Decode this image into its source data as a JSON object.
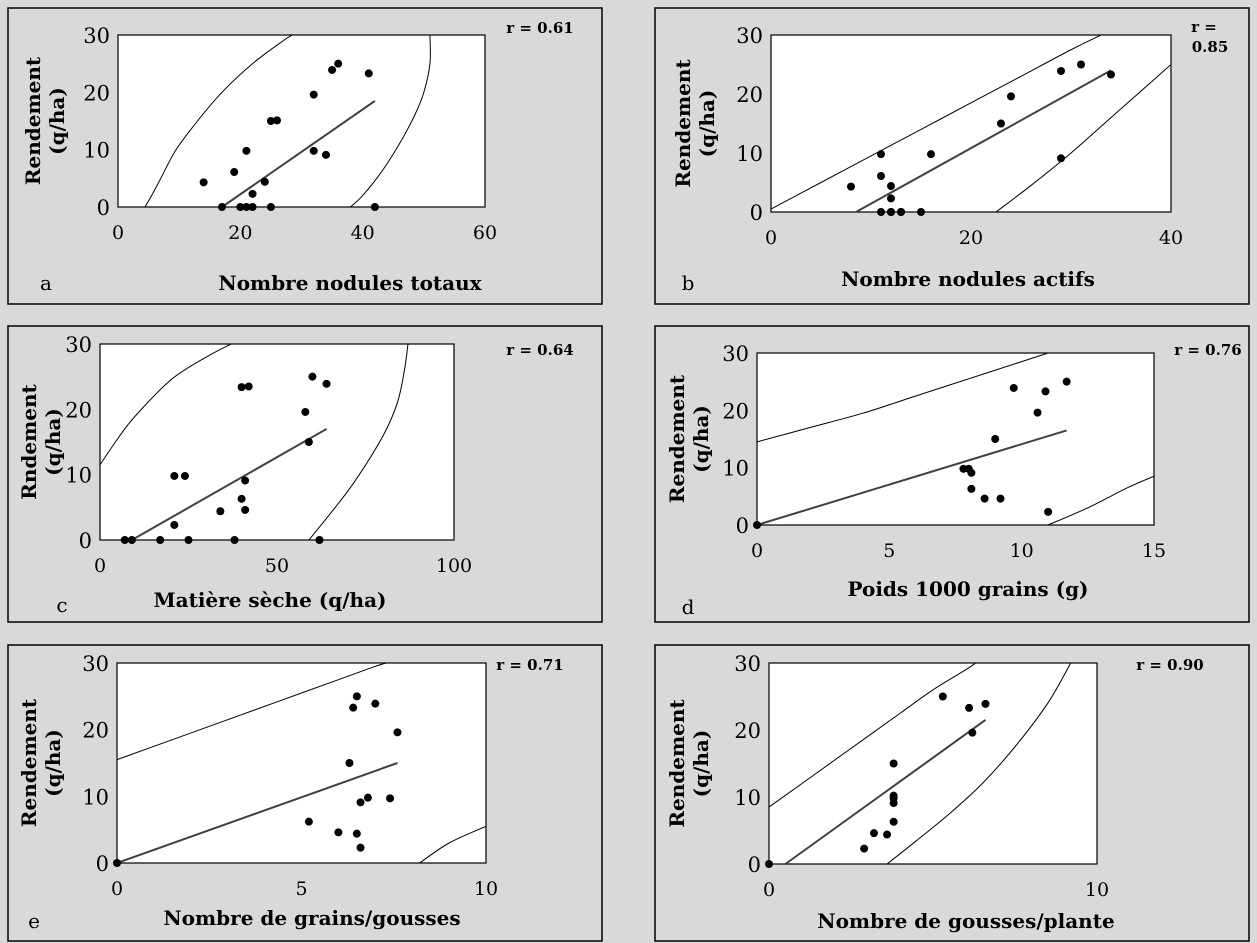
{
  "chart_data": [
    {
      "type": "scatter",
      "panel_label": "a",
      "r_label": "r = 0.61",
      "xlabel": "Nombre nodules totaux",
      "ylabel_line1": "Rendement",
      "ylabel_line2": "(q/ha)",
      "xlim": [
        0,
        60
      ],
      "ylim": [
        0,
        30
      ],
      "xticks": [
        0,
        20,
        40,
        60
      ],
      "yticks": [
        0,
        10,
        20,
        30
      ],
      "x": [
        14,
        17,
        19,
        20,
        21,
        21,
        22,
        22,
        24,
        25,
        25,
        26,
        32,
        32,
        34,
        35,
        36,
        41,
        42
      ],
      "y": [
        4.3,
        0,
        6.1,
        0,
        0,
        9.8,
        0,
        2.3,
        4.4,
        0,
        15,
        15.1,
        9.8,
        19.6,
        9.1,
        23.9,
        25,
        23.3,
        0
      ],
      "trend": [
        [
          17,
          0
        ],
        [
          42,
          18.5
        ]
      ],
      "band_upper": [
        [
          4.4,
          0
        ],
        [
          5.5,
          2
        ],
        [
          7,
          5
        ],
        [
          9.5,
          10
        ],
        [
          13,
          15
        ],
        [
          17,
          20
        ],
        [
          22,
          25
        ],
        [
          27,
          29
        ],
        [
          28.5,
          30
        ]
      ],
      "band_lower": [
        [
          38,
          0
        ],
        [
          40,
          2
        ],
        [
          43,
          6
        ],
        [
          46,
          11
        ],
        [
          48.5,
          16
        ],
        [
          50,
          20
        ],
        [
          51,
          25
        ],
        [
          51,
          30
        ]
      ]
    },
    {
      "type": "scatter",
      "panel_label": "b",
      "r_label": "r = 0.85",
      "xlabel": "Nombre nodules actifs",
      "ylabel_line1": "Rendement",
      "ylabel_line2": "(q/ha)",
      "xlim": [
        0,
        40
      ],
      "ylim": [
        0,
        30
      ],
      "xticks": [
        0,
        20,
        40
      ],
      "yticks": [
        0,
        10,
        20,
        30
      ],
      "x": [
        8,
        11,
        11,
        11,
        12,
        12,
        12,
        12,
        13,
        13,
        15,
        16,
        23,
        24,
        29,
        29,
        31,
        34
      ],
      "y": [
        4.3,
        9.8,
        6.1,
        0,
        0,
        4.4,
        0,
        2.3,
        0,
        0,
        0,
        9.8,
        15,
        19.6,
        9.1,
        23.9,
        25,
        23.3
      ],
      "trend": [
        [
          8.5,
          0
        ],
        [
          34,
          24
        ]
      ],
      "band_upper": [
        [
          0,
          0.5
        ],
        [
          5,
          5
        ],
        [
          10,
          9.5
        ],
        [
          15,
          14
        ],
        [
          20,
          18.5
        ],
        [
          25,
          23
        ],
        [
          30,
          27.5
        ],
        [
          33,
          30
        ]
      ],
      "band_lower": [
        [
          22.5,
          0
        ],
        [
          26,
          4.5
        ],
        [
          30,
          10
        ],
        [
          34,
          16
        ],
        [
          38,
          22
        ],
        [
          40,
          25
        ]
      ]
    },
    {
      "type": "scatter",
      "panel_label": "c",
      "r_label": "r = 0.64",
      "xlabel": "Matière sèche (q/ha)",
      "ylabel_line1": "Rndement",
      "ylabel_line2": "(q/ha)",
      "xlim": [
        0,
        100
      ],
      "ylim": [
        0,
        30
      ],
      "xticks": [
        0,
        50,
        100
      ],
      "yticks": [
        0,
        10,
        20,
        30
      ],
      "x": [
        7,
        9,
        17,
        21,
        21,
        24,
        25,
        34,
        38,
        40,
        41,
        41,
        42,
        40,
        58,
        59,
        60,
        62,
        64
      ],
      "y": [
        0,
        0,
        0,
        2.3,
        9.8,
        9.8,
        0,
        4.4,
        0,
        6.3,
        4.6,
        9.1,
        23.5,
        23.4,
        19.6,
        15,
        25,
        0,
        23.9
      ],
      "trend": [
        [
          9,
          0
        ],
        [
          64,
          17
        ]
      ],
      "band_upper": [
        [
          0,
          11.5
        ],
        [
          5,
          15.5
        ],
        [
          10,
          19
        ],
        [
          20,
          24.5
        ],
        [
          30,
          28
        ],
        [
          37,
          30
        ]
      ],
      "band_lower": [
        [
          59,
          0
        ],
        [
          65,
          4
        ],
        [
          72,
          9
        ],
        [
          80,
          16
        ],
        [
          84,
          21
        ],
        [
          86,
          26
        ],
        [
          87,
          30
        ]
      ]
    },
    {
      "type": "scatter",
      "panel_label": "d",
      "r_label": "r = 0.76",
      "xlabel": "Poids 1000 grains (g)",
      "ylabel_line1": "Rendement",
      "ylabel_line2": "(q/ha)",
      "xlim": [
        0,
        15
      ],
      "ylim": [
        0,
        30
      ],
      "xticks": [
        0,
        5,
        10,
        15
      ],
      "yticks": [
        0,
        10,
        20,
        30
      ],
      "x": [
        0,
        7.8,
        8,
        8.1,
        8.1,
        8.6,
        9,
        9.2,
        9.7,
        10.6,
        10.9,
        11,
        11.7
      ],
      "y": [
        0,
        9.8,
        9.8,
        9.1,
        6.3,
        4.6,
        15,
        4.6,
        23.9,
        19.6,
        23.3,
        2.3,
        25
      ],
      "trend": [
        [
          0,
          0
        ],
        [
          11.7,
          16.5
        ]
      ],
      "band_upper": [
        [
          0,
          14.5
        ],
        [
          2,
          17
        ],
        [
          4,
          19.5
        ],
        [
          6,
          22.5
        ],
        [
          8,
          25.5
        ],
        [
          10,
          28.5
        ],
        [
          11,
          30
        ]
      ],
      "band_lower": [
        [
          11,
          0
        ],
        [
          12.5,
          3
        ],
        [
          14,
          6.5
        ],
        [
          15,
          8.5
        ]
      ]
    },
    {
      "type": "scatter",
      "panel_label": "e",
      "r_label": "r = 0.71",
      "xlabel": "Nombre de grains/gousses",
      "ylabel_line1": "Rendement",
      "ylabel_line2": "(q/ha)",
      "xlim": [
        0,
        10
      ],
      "ylim": [
        0,
        30
      ],
      "xticks": [
        0,
        5,
        10
      ],
      "yticks": [
        0,
        10,
        20,
        30
      ],
      "x": [
        0,
        5.2,
        6,
        6.3,
        6.4,
        6.5,
        6.6,
        6.6,
        6.8,
        7,
        7.4,
        7.6,
        6.5
      ],
      "y": [
        0,
        6.2,
        4.6,
        15,
        23.3,
        4.4,
        9.1,
        2.3,
        9.8,
        23.9,
        9.7,
        19.6,
        25
      ],
      "trend": [
        [
          0,
          0
        ],
        [
          7.6,
          15
        ]
      ],
      "band_upper": [
        [
          0,
          15.5
        ],
        [
          1.5,
          18.5
        ],
        [
          3,
          21.5
        ],
        [
          4.5,
          24.5
        ],
        [
          6,
          27.5
        ],
        [
          7,
          29.5
        ],
        [
          7.3,
          30
        ]
      ],
      "band_lower": [
        [
          8.2,
          0
        ],
        [
          9,
          3
        ],
        [
          10,
          5.5
        ]
      ]
    },
    {
      "type": "scatter",
      "panel_label": "f",
      "r_label": "r = 0.90",
      "xlabel": "Nombre de gousses/plante",
      "ylabel_line1": "Rendement",
      "ylabel_line2": "(q/ha)",
      "xlim": [
        0,
        10
      ],
      "ylim": [
        0,
        30
      ],
      "xticks": [
        0,
        10
      ],
      "yticks": [
        0,
        10,
        20,
        30
      ],
      "x": [
        0,
        2.9,
        3.2,
        3.6,
        3.8,
        3.8,
        3.8,
        3.8,
        3.8,
        5.3,
        6.1,
        6.2,
        6.6
      ],
      "y": [
        0,
        2.3,
        4.6,
        4.4,
        6.3,
        9.1,
        9.8,
        10.2,
        15,
        25,
        23.3,
        19.6,
        23.9
      ],
      "trend": [
        [
          0.5,
          0
        ],
        [
          6.6,
          21.5
        ]
      ],
      "band_upper": [
        [
          0,
          8.5
        ],
        [
          1,
          12
        ],
        [
          2,
          15.5
        ],
        [
          3,
          19
        ],
        [
          4,
          22.5
        ],
        [
          5,
          26
        ],
        [
          6,
          29
        ],
        [
          6.3,
          30
        ]
      ],
      "band_lower": [
        [
          3.6,
          0
        ],
        [
          4.5,
          3.5
        ],
        [
          5.5,
          7.5
        ],
        [
          6.5,
          12
        ],
        [
          7.5,
          17.5
        ],
        [
          8.5,
          24
        ],
        [
          9.2,
          30
        ]
      ]
    }
  ]
}
